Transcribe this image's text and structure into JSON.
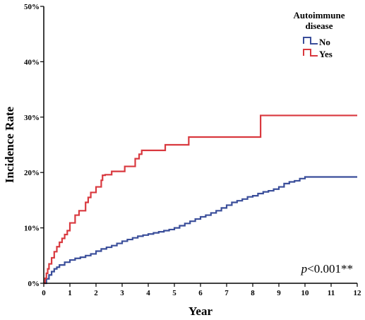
{
  "chart_data": {
    "type": "line",
    "step": true,
    "xlabel": "Year",
    "ylabel": "Incidence Rate",
    "xlim": [
      0,
      12
    ],
    "ylim": [
      0,
      50
    ],
    "x_ticks": [
      0,
      1,
      2,
      3,
      4,
      5,
      6,
      7,
      8,
      9,
      10,
      11,
      12
    ],
    "y_ticks": [
      0,
      10,
      20,
      30,
      40,
      50
    ],
    "y_tick_labels": [
      "0%",
      "10%",
      "20%",
      "30%",
      "40%",
      "50%"
    ],
    "grid": false,
    "legend": {
      "title": "Autoimmune disease",
      "title_lines": [
        "Autoimmune",
        "disease"
      ],
      "placement": "top-right"
    },
    "annotation": {
      "italic": "p",
      "rest": "<0.001**"
    },
    "series": [
      {
        "name": "No",
        "color": "#3a4e9a",
        "x": [
          0,
          0.1,
          0.2,
          0.3,
          0.4,
          0.5,
          0.6,
          0.8,
          1.0,
          1.2,
          1.4,
          1.6,
          1.8,
          2.0,
          2.2,
          2.4,
          2.6,
          2.8,
          3.0,
          3.2,
          3.4,
          3.6,
          3.8,
          4.0,
          4.2,
          4.4,
          4.6,
          4.8,
          5.0,
          5.2,
          5.4,
          5.6,
          5.8,
          6.0,
          6.2,
          6.4,
          6.6,
          6.8,
          7.0,
          7.2,
          7.4,
          7.6,
          7.8,
          8.0,
          8.2,
          8.4,
          8.6,
          8.8,
          9.0,
          9.2,
          9.4,
          9.6,
          9.8,
          10.0,
          12.0
        ],
        "y": [
          0,
          0.8,
          1.5,
          2.1,
          2.6,
          2.9,
          3.3,
          3.8,
          4.2,
          4.5,
          4.7,
          5.0,
          5.3,
          5.8,
          6.2,
          6.5,
          6.8,
          7.2,
          7.6,
          7.9,
          8.2,
          8.5,
          8.7,
          8.9,
          9.1,
          9.3,
          9.5,
          9.7,
          10.0,
          10.4,
          10.8,
          11.2,
          11.6,
          12.0,
          12.3,
          12.7,
          13.1,
          13.6,
          14.1,
          14.6,
          14.9,
          15.2,
          15.6,
          15.8,
          16.2,
          16.5,
          16.7,
          17.0,
          17.4,
          18.0,
          18.3,
          18.5,
          18.9,
          19.2,
          19.2
        ]
      },
      {
        "name": "Yes",
        "color": "#d9393f",
        "x": [
          0,
          0.05,
          0.1,
          0.15,
          0.2,
          0.3,
          0.4,
          0.5,
          0.6,
          0.7,
          0.8,
          0.9,
          1.0,
          1.2,
          1.35,
          1.6,
          1.7,
          1.8,
          2.0,
          2.2,
          2.25,
          2.35,
          2.6,
          3.1,
          3.5,
          3.65,
          3.75,
          4.65,
          5.55,
          8.3,
          12.0
        ],
        "y": [
          0,
          0.9,
          1.8,
          2.6,
          3.5,
          4.6,
          5.7,
          6.6,
          7.4,
          8.1,
          8.8,
          9.5,
          10.9,
          12.3,
          13.1,
          14.6,
          15.5,
          16.4,
          17.4,
          18.6,
          19.5,
          19.6,
          20.2,
          21.1,
          22.5,
          23.3,
          24.0,
          25.0,
          26.4,
          30.3,
          30.3
        ]
      }
    ]
  }
}
